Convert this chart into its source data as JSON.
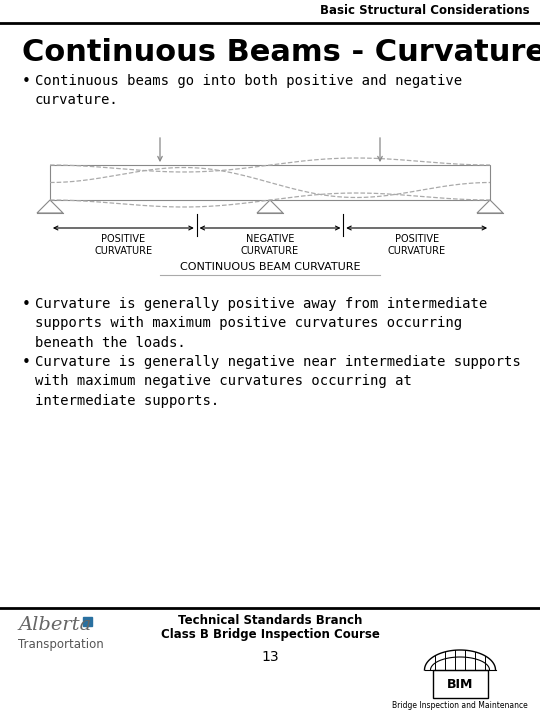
{
  "header_text": "Basic Structural Considerations",
  "title": "Continuous Beams - Curvature",
  "bullet1": "Continuous beams go into both positive and negative\ncurvature.",
  "bullet2": "Curvature is generally positive away from intermediate\nsupports with maximum positive curvatures occurring\nbeneath the loads.",
  "bullet3": "Curvature is generally negative near intermediate supports\nwith maximum negative curvatures occurring at\nintermediate supports.",
  "diagram_caption": "CONTINUOUS BEAM CURVATURE",
  "label_pos1": "POSITIVE\nCURVATURE",
  "label_neg": "NEGATIVE\nCURVATURE",
  "label_pos2": "POSITIVE\nCURVATURE",
  "footer_left_script": "Alberta",
  "footer_left_sub": "Transportation",
  "footer_center_line1": "Technical Standards Branch",
  "footer_center_line2": "Class B Bridge Inspection Course",
  "footer_page": "13",
  "footer_right": "Bridge Inspection and Maintenance",
  "bg_color": "#ffffff",
  "text_color": "#000000",
  "gray": "#888888",
  "light_gray": "#aaaaaa"
}
